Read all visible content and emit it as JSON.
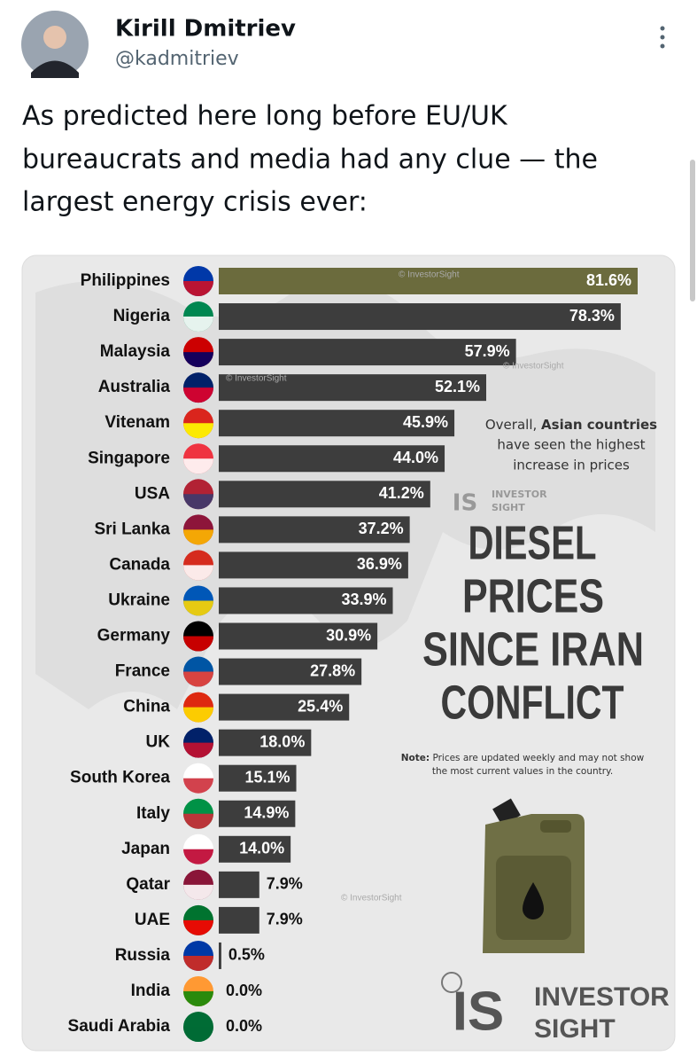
{
  "tweet": {
    "name": "Kirill Dmitriev",
    "handle": "@kadmitriev",
    "text_lines": [
      "As predicted here long before EU/UK",
      "bureaucrats and media had any clue — the",
      "largest energy crisis ever:"
    ]
  },
  "chart_data": {
    "type": "bar",
    "orientation": "horizontal",
    "categories": [
      "Philippines",
      "Nigeria",
      "Malaysia",
      "Australia",
      "Vitenam",
      "Singapore",
      "USA",
      "Sri Lanka",
      "Canada",
      "Ukraine",
      "Germany",
      "France",
      "China",
      "UK",
      "South Korea",
      "Italy",
      "Japan",
      "Qatar",
      "UAE",
      "Russia",
      "India",
      "Saudi Arabia"
    ],
    "values": [
      81.6,
      78.3,
      57.9,
      52.1,
      45.9,
      44.0,
      41.2,
      37.2,
      36.9,
      33.9,
      30.9,
      27.8,
      25.4,
      18.0,
      15.1,
      14.9,
      14.0,
      7.9,
      7.9,
      0.5,
      0.0,
      0.0
    ],
    "value_labels": [
      "81.6%",
      "78.3%",
      "57.9%",
      "52.1%",
      "45.9%",
      "44.0%",
      "41.2%",
      "37.2%",
      "36.9%",
      "33.9%",
      "30.9%",
      "27.8%",
      "25.4%",
      "18.0%",
      "15.1%",
      "14.9%",
      "14.0%",
      "7.9%",
      "7.9%",
      "0.5%",
      "0.0%",
      "0.0%"
    ],
    "bar_colors": [
      "#6b6b3d",
      "#3d3d3d",
      "#3d3d3d",
      "#3d3d3d",
      "#3d3d3d",
      "#3d3d3d",
      "#3d3d3d",
      "#3d3d3d",
      "#3d3d3d",
      "#3d3d3d",
      "#3d3d3d",
      "#3d3d3d",
      "#3d3d3d",
      "#3d3d3d",
      "#3d3d3d",
      "#3d3d3d",
      "#3d3d3d",
      "#3d3d3d",
      "#3d3d3d",
      "#3d3d3d",
      "#3d3d3d",
      "#3d3d3d"
    ],
    "title_lines": [
      "DIESEL",
      "PRICES",
      "SINCE IRAN",
      "CONFLICT"
    ],
    "annotation": {
      "line1_start": "Overall, ",
      "line1_bold": "Asian countries",
      "line2": "have seen the highest",
      "line3": "increase in prices"
    },
    "note": {
      "label": "Note:",
      "line1": " Prices are updated weekly and may not show",
      "line2": "the most current values in the country."
    },
    "watermark": "© InvestorSight",
    "brand": {
      "logo": "IS",
      "line1": "INVESTOR",
      "line2": "SIGHT"
    }
  }
}
